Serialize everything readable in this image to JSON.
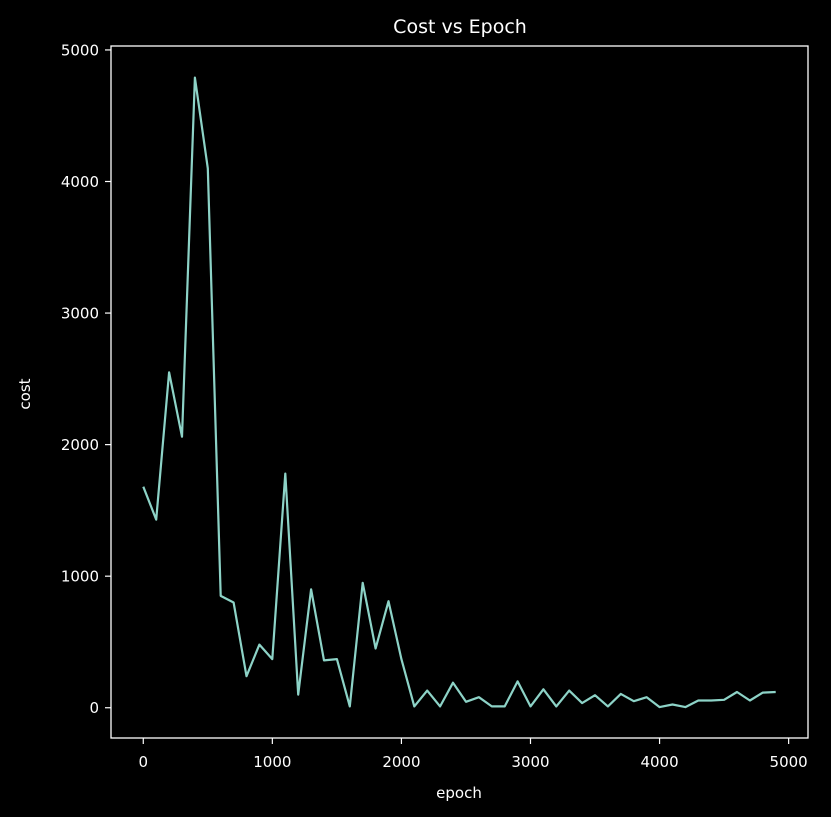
{
  "chart_data": {
    "type": "line",
    "title": "Cost vs Epoch",
    "xlabel": "epoch",
    "ylabel": "cost",
    "xlim": [
      -250,
      5150
    ],
    "ylim": [
      -230,
      5030
    ],
    "xticks": [
      0,
      1000,
      2000,
      3000,
      4000,
      5000
    ],
    "yticks": [
      0,
      1000,
      2000,
      3000,
      4000,
      5000
    ],
    "grid": false,
    "colors": {
      "background": "#000000",
      "axes": "#ffffff",
      "text": "#ffffff",
      "line": "#8dd3c7"
    },
    "series": [
      {
        "x": [
          0,
          100,
          200,
          300,
          400,
          500,
          600,
          700,
          800,
          900,
          1000,
          1100,
          1200,
          1300,
          1400,
          1500,
          1600,
          1700,
          1800,
          1900,
          2000,
          2100,
          2200,
          2300,
          2400,
          2500,
          2600,
          2700,
          2800,
          2900,
          3000,
          3100,
          3200,
          3300,
          3400,
          3500,
          3600,
          3700,
          3800,
          3900,
          4000,
          4100,
          4200,
          4300,
          4400,
          4500,
          4600,
          4700,
          4800,
          4900
        ],
        "values": [
          1680,
          1430,
          2550,
          2060,
          4790,
          4100,
          850,
          800,
          240,
          480,
          370,
          1780,
          100,
          900,
          360,
          370,
          10,
          950,
          450,
          810,
          370,
          10,
          130,
          10,
          190,
          45,
          80,
          10,
          10,
          200,
          10,
          140,
          10,
          130,
          35,
          95,
          10,
          105,
          50,
          80,
          5,
          25,
          5,
          55,
          55,
          60,
          120,
          55,
          115,
          120
        ]
      }
    ]
  }
}
